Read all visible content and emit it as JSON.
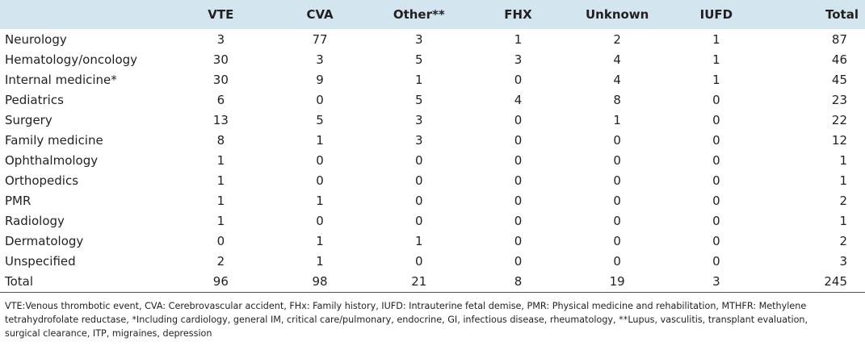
{
  "table": {
    "columns": [
      "VTE",
      "CVA",
      "Other**",
      "FHX",
      "Unknown",
      "IUFD",
      "Total"
    ],
    "rows": [
      {
        "label": "Neurology",
        "values": [
          3,
          77,
          3,
          1,
          2,
          1,
          87
        ]
      },
      {
        "label": "Hematology/oncology",
        "values": [
          30,
          3,
          5,
          3,
          4,
          1,
          46
        ]
      },
      {
        "label": "Internal medicine*",
        "values": [
          30,
          9,
          1,
          0,
          4,
          1,
          45
        ]
      },
      {
        "label": "Pediatrics",
        "values": [
          6,
          0,
          5,
          4,
          8,
          0,
          23
        ]
      },
      {
        "label": "Surgery",
        "values": [
          13,
          5,
          3,
          0,
          1,
          0,
          22
        ]
      },
      {
        "label": "Family medicine",
        "values": [
          8,
          1,
          3,
          0,
          0,
          0,
          12
        ]
      },
      {
        "label": "Ophthalmology",
        "values": [
          1,
          0,
          0,
          0,
          0,
          0,
          1
        ]
      },
      {
        "label": "Orthopedics",
        "values": [
          1,
          0,
          0,
          0,
          0,
          0,
          1
        ]
      },
      {
        "label": "PMR",
        "values": [
          1,
          1,
          0,
          0,
          0,
          0,
          2
        ]
      },
      {
        "label": "Radiology",
        "values": [
          1,
          0,
          0,
          0,
          0,
          0,
          1
        ]
      },
      {
        "label": "Dermatology",
        "values": [
          0,
          1,
          1,
          0,
          0,
          0,
          2
        ]
      },
      {
        "label": "Unspecified",
        "values": [
          2,
          1,
          0,
          0,
          0,
          0,
          3
        ]
      },
      {
        "label": "Total",
        "values": [
          96,
          98,
          21,
          8,
          19,
          3,
          245
        ]
      }
    ],
    "footnote": [
      "VTE:Venous thrombotic event, CVA: Cerebrovascular accident, FHx: Family history, IUFD: Intrauterine fetal demise, PMR: Physical medicine and rehabilitation, MTHFR: Methylene",
      "tetrahydrofolate reductase, *Including cardiology, general IM, critical care/pulmonary, endocrine, GI, infectious disease, rheumatology, **Lupus, vasculitis, transplant evaluation,",
      "surgical clearance, ITP, migraines, depression"
    ]
  }
}
